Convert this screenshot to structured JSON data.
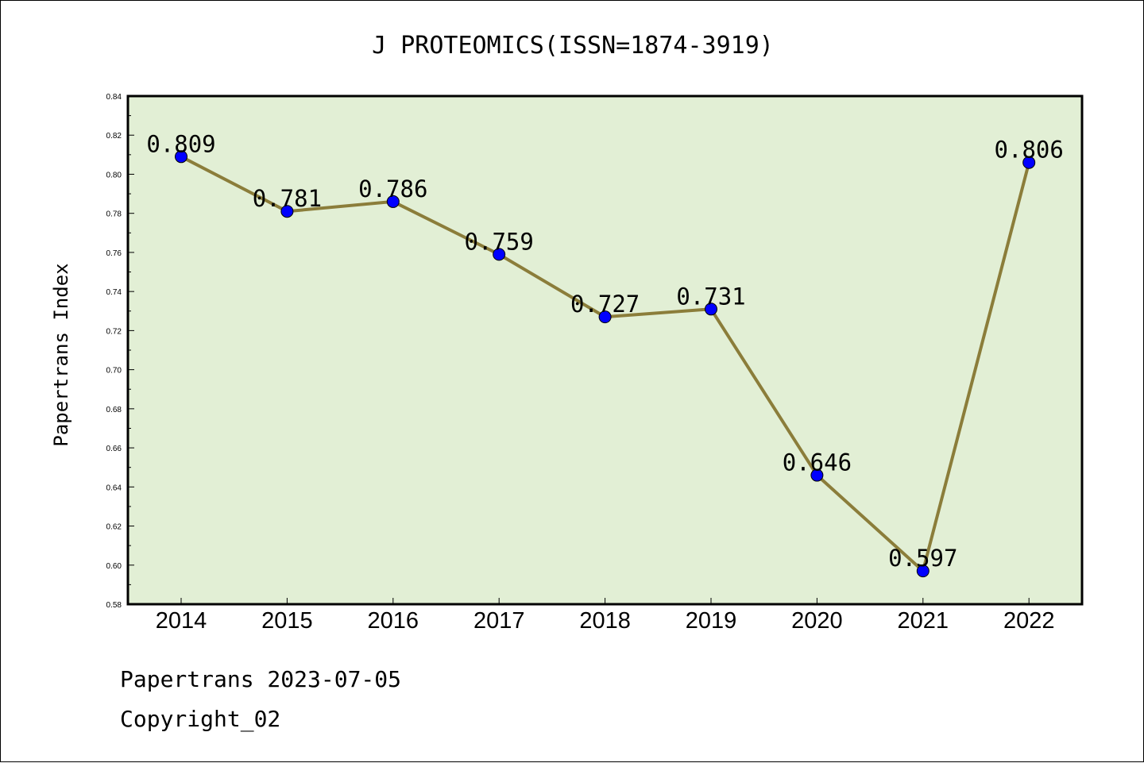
{
  "chart_data": {
    "type": "line",
    "title": "J PROTEOMICS(ISSN=1874-3919)",
    "xlabel": "",
    "ylabel": "Papertrans Index",
    "categories": [
      "2014",
      "2015",
      "2016",
      "2017",
      "2018",
      "2019",
      "2020",
      "2021",
      "2022"
    ],
    "values": [
      0.809,
      0.781,
      0.786,
      0.759,
      0.727,
      0.731,
      0.646,
      0.597,
      0.806
    ],
    "data_labels": [
      "0.809",
      "0.781",
      "0.786",
      "0.759",
      "0.727",
      "0.731",
      "0.646",
      "0.597",
      "0.806"
    ],
    "ylim": [
      0.58,
      0.84
    ],
    "yticks": [
      "0.58",
      "0.60",
      "0.62",
      "0.64",
      "0.66",
      "0.68",
      "0.70",
      "0.72",
      "0.74",
      "0.76",
      "0.78",
      "0.80",
      "0.82",
      "0.84"
    ],
    "grid": false,
    "colors": {
      "plot_background": "#e2efd5",
      "line": "#8b7d3a",
      "marker": "#0000ff"
    }
  },
  "footer": {
    "line1": "Papertrans 2023-07-05",
    "line2": "Copyright_02"
  }
}
